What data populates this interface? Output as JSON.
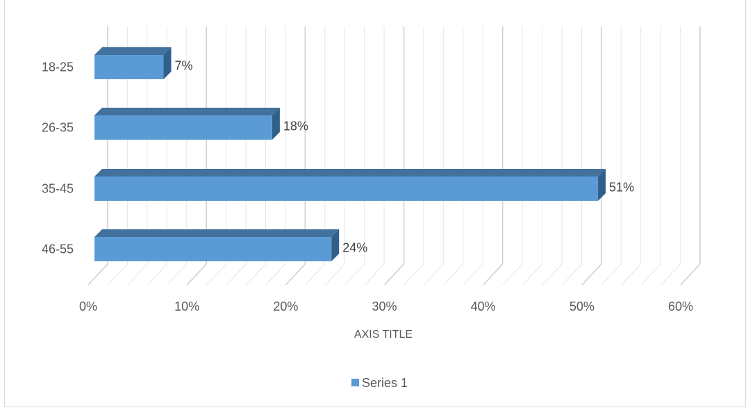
{
  "chart_data": {
    "type": "bar",
    "orientation": "horizontal",
    "style": "3d",
    "categories": [
      "18-25",
      "26-35",
      "35-45",
      "46-55"
    ],
    "series": [
      {
        "name": "Series 1",
        "values": [
          7,
          18,
          51,
          24
        ]
      }
    ],
    "data_labels": [
      "7%",
      "18%",
      "51%",
      "24%"
    ],
    "x_ticks": [
      "0%",
      "10%",
      "20%",
      "30%",
      "40%",
      "50%",
      "60%"
    ],
    "xlim": [
      0,
      60
    ],
    "xlabel": "AXIS TITLE",
    "ylabel": "",
    "title": "",
    "grid": true,
    "legend": "bottom",
    "colors": {
      "bar_front": "#5b9bd5",
      "bar_top": "#41719c",
      "bar_side": "#2f5f8a",
      "grid": "#d9d9d9",
      "text": "#595959"
    }
  }
}
